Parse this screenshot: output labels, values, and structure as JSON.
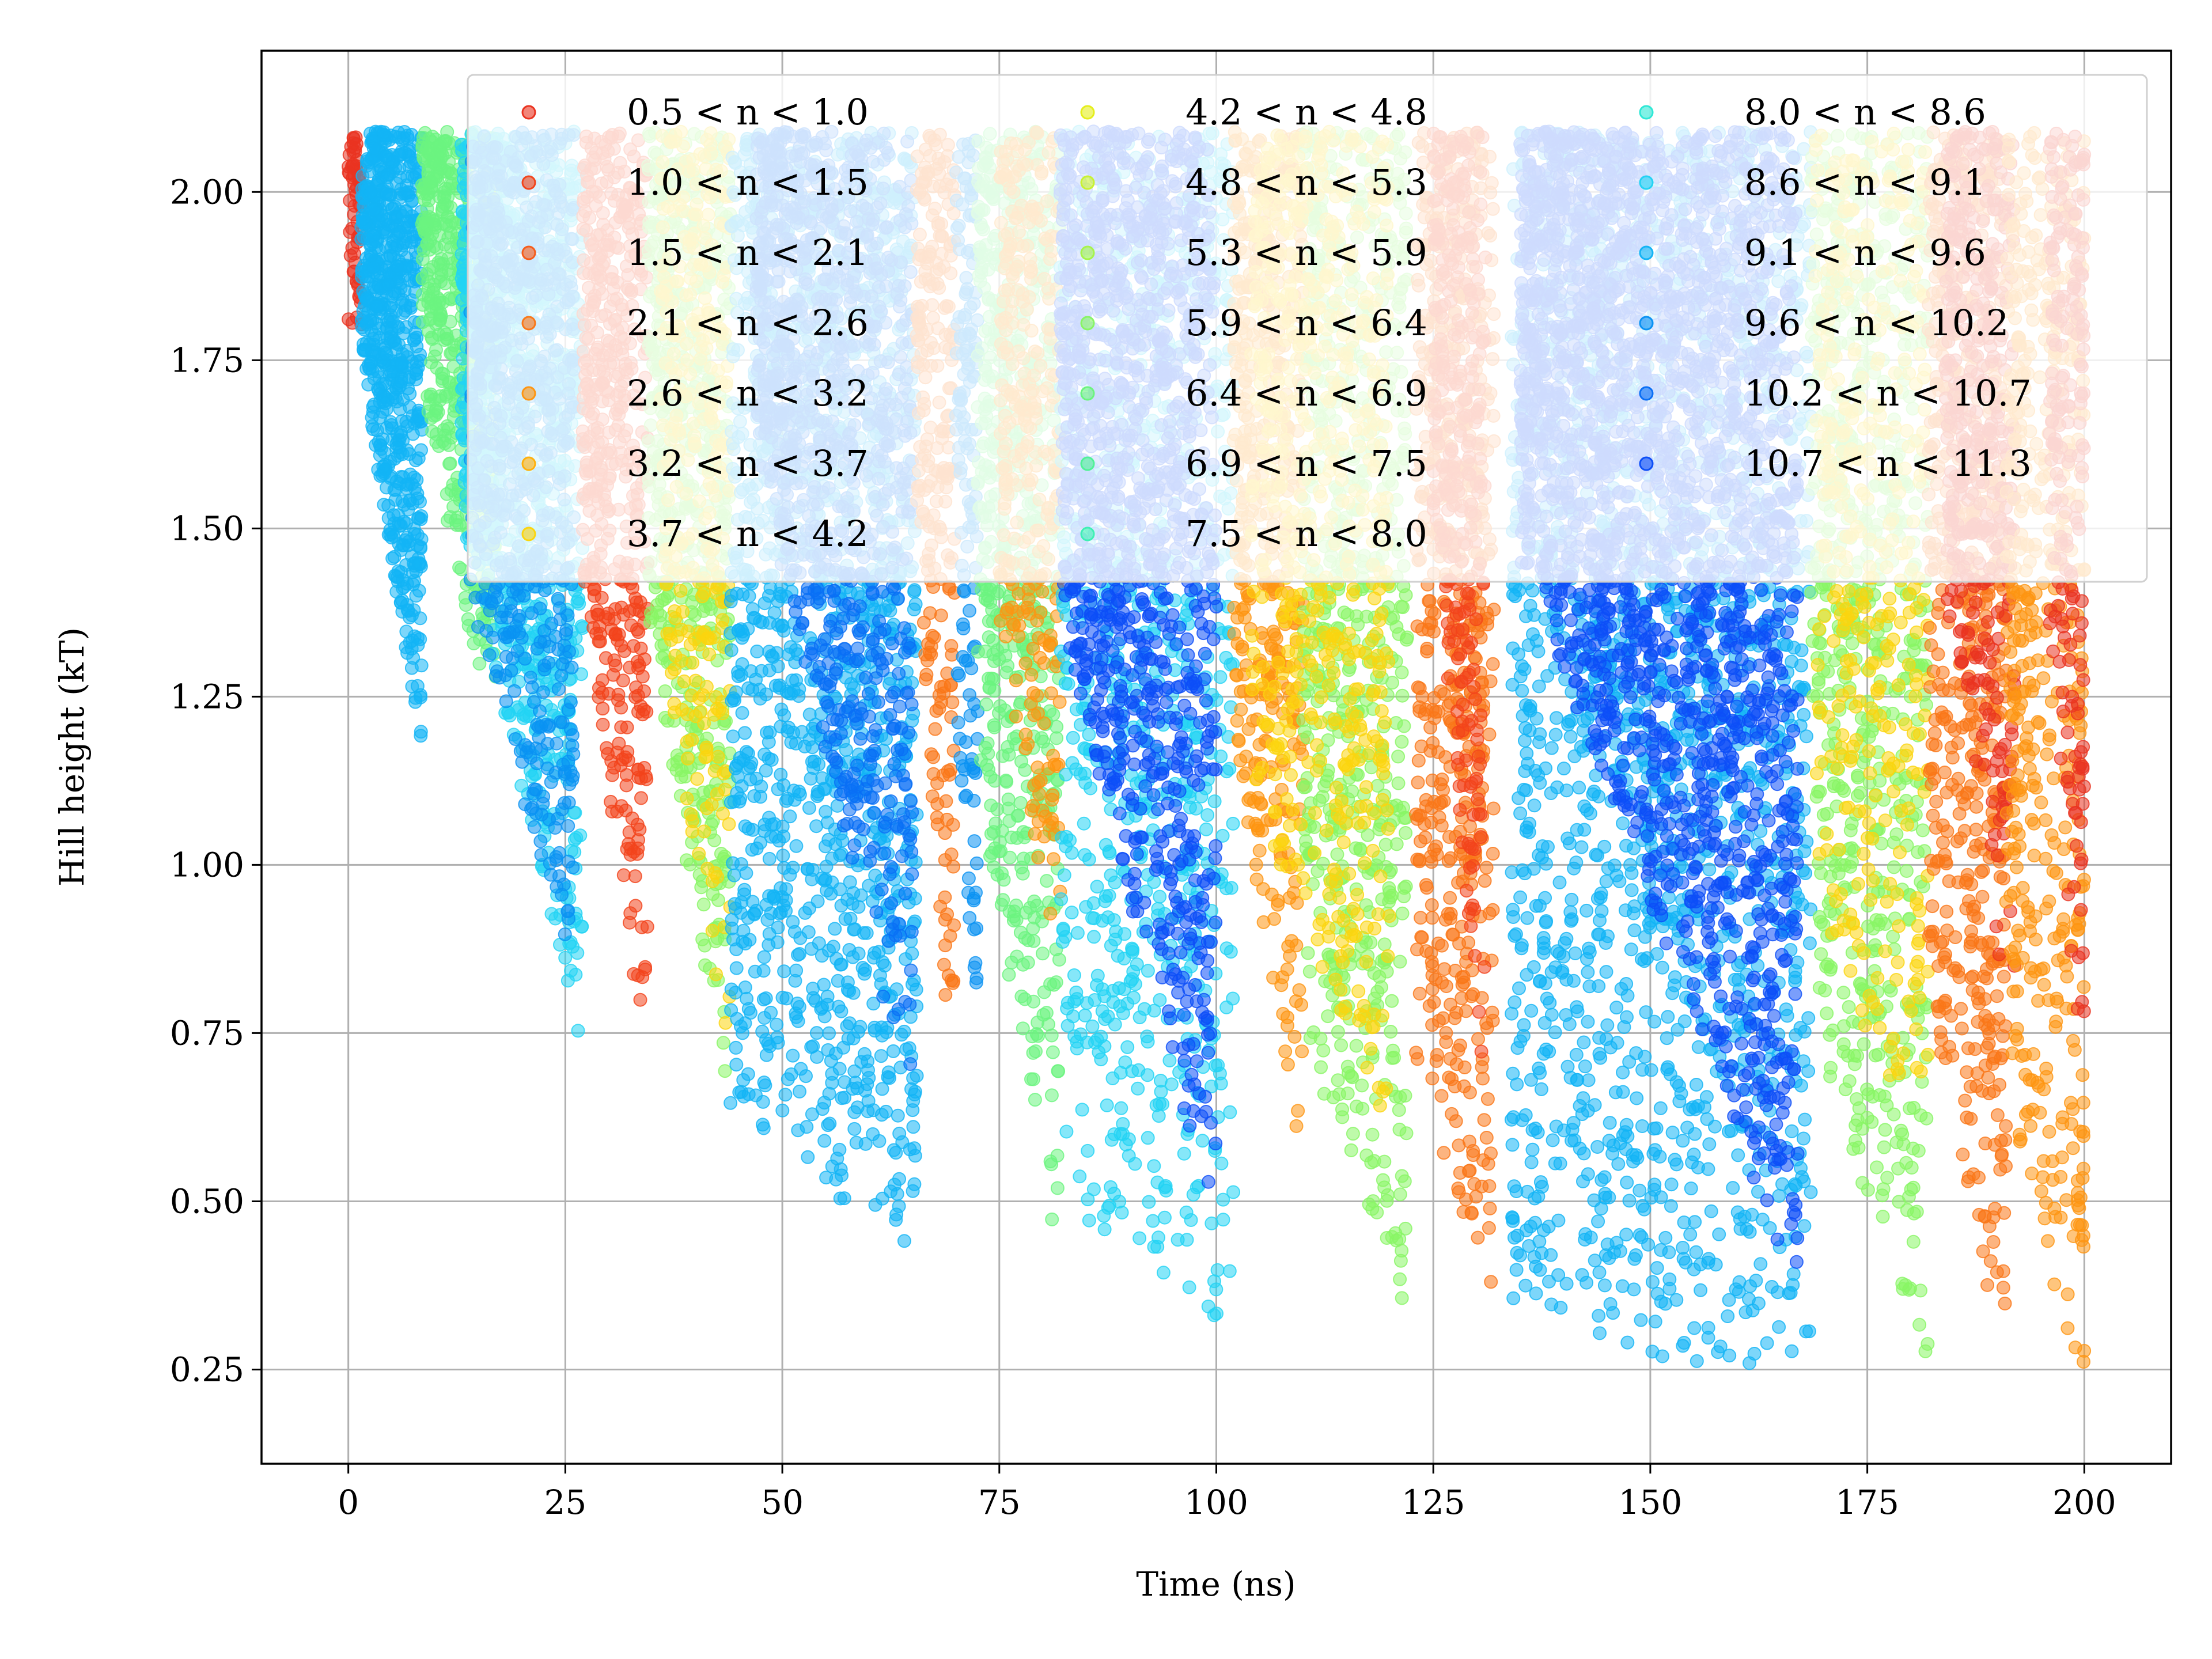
{
  "chart_data": {
    "type": "scatter",
    "title": "",
    "xlabel": "Time (ns)",
    "ylabel": "Hill height (kT)",
    "xlim": [
      -10,
      210
    ],
    "ylim": [
      0.11,
      2.21
    ],
    "x_ticks": [
      0,
      25,
      50,
      75,
      100,
      125,
      150,
      175,
      200
    ],
    "x_tick_labels": [
      "0",
      "25",
      "50",
      "75",
      "100",
      "125",
      "150",
      "175",
      "200"
    ],
    "y_ticks": [
      0.25,
      0.5,
      0.75,
      1.0,
      1.25,
      1.5,
      1.75,
      2.0
    ],
    "y_tick_labels": [
      "0.25",
      "0.50",
      "0.75",
      "1.00",
      "1.25",
      "1.50",
      "1.75",
      "2.00"
    ],
    "grid": true,
    "legend_position": "upper-right, 3 columns",
    "series": [
      {
        "name": "0.5 < n < 1.0",
        "color": "#ea3320"
      },
      {
        "name": "1.0 < n < 1.5",
        "color": "#f2441b"
      },
      {
        "name": "1.5 < n < 2.1",
        "color": "#f65c1a"
      },
      {
        "name": "2.1 < n < 2.6",
        "color": "#fa7718"
      },
      {
        "name": "2.6 < n < 3.2",
        "color": "#fe9512"
      },
      {
        "name": "3.2 < n < 3.7",
        "color": "#ffb00c"
      },
      {
        "name": "3.7 < n < 4.2",
        "color": "#fbd50f"
      },
      {
        "name": "4.2 < n < 4.8",
        "color": "#e5ee1d"
      },
      {
        "name": "4.8 < n < 5.3",
        "color": "#c8f232"
      },
      {
        "name": "5.3 < n < 5.9",
        "color": "#a6f44b"
      },
      {
        "name": "5.9 < n < 6.4",
        "color": "#88f565"
      },
      {
        "name": "6.4 < n < 6.9",
        "color": "#6cf47f"
      },
      {
        "name": "6.9 < n < 7.5",
        "color": "#50f296"
      },
      {
        "name": "7.5 < n < 8.0",
        "color": "#3ef0b4"
      },
      {
        "name": "8.0 < n < 8.6",
        "color": "#2ee8d6"
      },
      {
        "name": "8.6 < n < 9.1",
        "color": "#22d3f4"
      },
      {
        "name": "9.1 < n < 9.6",
        "color": "#13b4f5"
      },
      {
        "name": "9.6 < n < 10.2",
        "color": "#0a92f3"
      },
      {
        "name": "10.2 < n < 10.7",
        "color": "#0a6ff5"
      },
      {
        "name": "10.7 < n < 11.3",
        "color": "#0c4ef7"
      }
    ],
    "segments": [
      {
        "x0": 0,
        "x1": 1.5,
        "y_low0": 1.8,
        "y_low1": 1.8,
        "color": "#ea3320",
        "density": 60
      },
      {
        "x0": 1.5,
        "x1": 8.5,
        "y_low0": 1.75,
        "y_low1": 1.15,
        "color": "#13b4f5",
        "density": 700
      },
      {
        "x0": 8.5,
        "x1": 17,
        "y_low0": 1.7,
        "y_low1": 1.15,
        "color": "#6cf47f",
        "density": 500
      },
      {
        "x0": 13,
        "x1": 27,
        "y_low0": 1.5,
        "y_low1": 0.72,
        "color": "#22d3f4",
        "density": 900
      },
      {
        "x0": 14,
        "x1": 26,
        "y_low0": 1.4,
        "y_low1": 0.8,
        "color": "#0a92f3",
        "density": 700
      },
      {
        "x0": 27,
        "x1": 34.5,
        "y_low0": 1.4,
        "y_low1": 0.68,
        "color": "#f2441b",
        "density": 500
      },
      {
        "x0": 34.5,
        "x1": 44,
        "y_low0": 1.35,
        "y_low1": 0.62,
        "color": "#88f565",
        "density": 600
      },
      {
        "x0": 36,
        "x1": 44,
        "y_low0": 1.3,
        "y_low1": 0.7,
        "color": "#fbd50f",
        "density": 300
      },
      {
        "x0": 44,
        "x1": 65.5,
        "y_low0": 0.62,
        "y_low1": 0.41,
        "color": "#13b4f5",
        "density": 1400
      },
      {
        "x0": 47,
        "x1": 65,
        "y_low0": 1.6,
        "y_low1": 0.6,
        "color": "#0a6ff5",
        "density": 900
      },
      {
        "x0": 65.5,
        "x1": 70,
        "y_low0": 1.45,
        "y_low1": 0.57,
        "color": "#fa7718",
        "density": 250
      },
      {
        "x0": 70,
        "x1": 72.5,
        "y_low0": 1.2,
        "y_low1": 0.7,
        "color": "#0a92f3",
        "density": 150
      },
      {
        "x0": 72.5,
        "x1": 82,
        "y_low0": 1.1,
        "y_low1": 0.38,
        "color": "#6cf47f",
        "density": 600
      },
      {
        "x0": 75,
        "x1": 82,
        "y_low0": 1.35,
        "y_low1": 0.8,
        "color": "#fe9512",
        "density": 300
      },
      {
        "x0": 82,
        "x1": 102,
        "y_low0": 0.5,
        "y_low1": 0.3,
        "color": "#22d3f4",
        "density": 900
      },
      {
        "x0": 82,
        "x1": 100,
        "y_low0": 1.35,
        "y_low1": 0.45,
        "color": "#0c4ef7",
        "density": 1200
      },
      {
        "x0": 102,
        "x1": 110,
        "y_low0": 1.2,
        "y_low1": 0.5,
        "color": "#fe9512",
        "density": 500
      },
      {
        "x0": 110,
        "x1": 122,
        "y_low0": 0.75,
        "y_low1": 0.3,
        "color": "#88f565",
        "density": 700
      },
      {
        "x0": 104,
        "x1": 120,
        "y_low0": 1.1,
        "y_low1": 0.6,
        "color": "#fbd50f",
        "density": 600
      },
      {
        "x0": 123,
        "x1": 132,
        "y_low0": 0.7,
        "y_low1": 0.33,
        "color": "#fa7718",
        "density": 600
      },
      {
        "x0": 125,
        "x1": 131,
        "y_low0": 1.5,
        "y_low1": 0.6,
        "color": "#f2441b",
        "density": 300
      },
      {
        "x0": 134,
        "x1": 168.5,
        "y_low0": 0.32,
        "y_low1": 0.2,
        "color": "#13b4f5",
        "density": 1800
      },
      {
        "x0": 135,
        "x1": 167,
        "y_low0": 1.45,
        "y_low1": 0.35,
        "color": "#0c4ef7",
        "density": 2200
      },
      {
        "x0": 168.5,
        "x1": 182,
        "y_low0": 0.75,
        "y_low1": 0.24,
        "color": "#88f565",
        "density": 700
      },
      {
        "x0": 169,
        "x1": 182,
        "y_low0": 0.9,
        "y_low1": 0.55,
        "color": "#fbd50f",
        "density": 400
      },
      {
        "x0": 182,
        "x1": 191,
        "y_low0": 0.8,
        "y_low1": 0.21,
        "color": "#fa7718",
        "density": 600
      },
      {
        "x0": 184,
        "x1": 192,
        "y_low0": 1.4,
        "y_low1": 0.7,
        "color": "#ea3320",
        "density": 400
      },
      {
        "x0": 191,
        "x1": 200,
        "y_low0": 0.65,
        "y_low1": 0.2,
        "color": "#fe9512",
        "density": 500
      },
      {
        "x0": 196,
        "x1": 200,
        "y_low0": 1.3,
        "y_low1": 0.6,
        "color": "#ea3320",
        "density": 200
      }
    ]
  }
}
